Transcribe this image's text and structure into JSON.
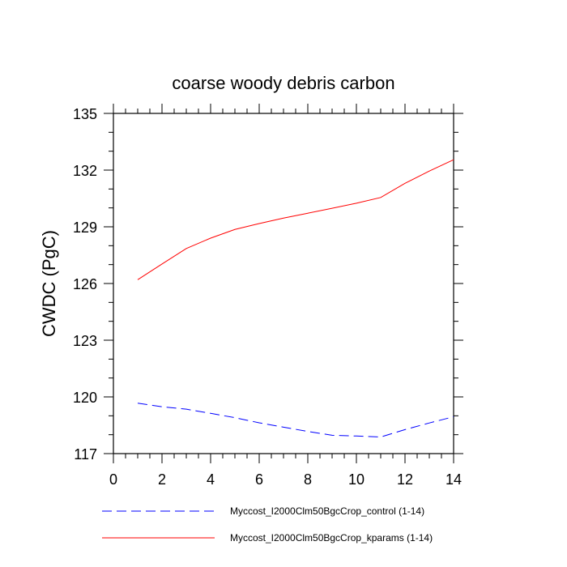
{
  "chart_data": {
    "type": "line",
    "title": "coarse woody debris carbon",
    "xlabel": "",
    "ylabel": "CWDC  (PgC)",
    "xlim": [
      0,
      14
    ],
    "ylim": [
      117,
      135
    ],
    "xticks": [
      0,
      2,
      4,
      6,
      8,
      10,
      12,
      14
    ],
    "yticks": [
      117,
      120,
      123,
      126,
      129,
      132,
      135
    ],
    "x_tick_labels": [
      "0",
      "2",
      "4",
      "6",
      "8",
      "10",
      "12",
      "14"
    ],
    "y_tick_labels": [
      "117",
      "120",
      "123",
      "126",
      "129",
      "132",
      "135"
    ],
    "grid": false,
    "legend_position": "bottom",
    "series": [
      {
        "name": "Myccost_I2000Clm50BgcCrop_control (1-14)",
        "color": "#0000ff",
        "dash": "dashed",
        "x": [
          1,
          2,
          3,
          4,
          5,
          6,
          7,
          8,
          9,
          10,
          11,
          12,
          13,
          14
        ],
        "values": [
          119.67,
          119.48,
          119.35,
          119.13,
          118.9,
          118.63,
          118.4,
          118.17,
          117.97,
          117.93,
          117.88,
          118.27,
          118.62,
          118.95
        ]
      },
      {
        "name": "Myccost_I2000Clm50BgcCrop_kparams (1-14)",
        "color": "#ff0000",
        "dash": "solid",
        "x": [
          1,
          2,
          3,
          4,
          5,
          6,
          7,
          8,
          9,
          10,
          11,
          12,
          13,
          14
        ],
        "values": [
          126.2,
          127.03,
          127.85,
          128.4,
          128.86,
          129.17,
          129.46,
          129.72,
          129.98,
          130.25,
          130.55,
          131.3,
          131.95,
          132.55
        ]
      }
    ]
  }
}
